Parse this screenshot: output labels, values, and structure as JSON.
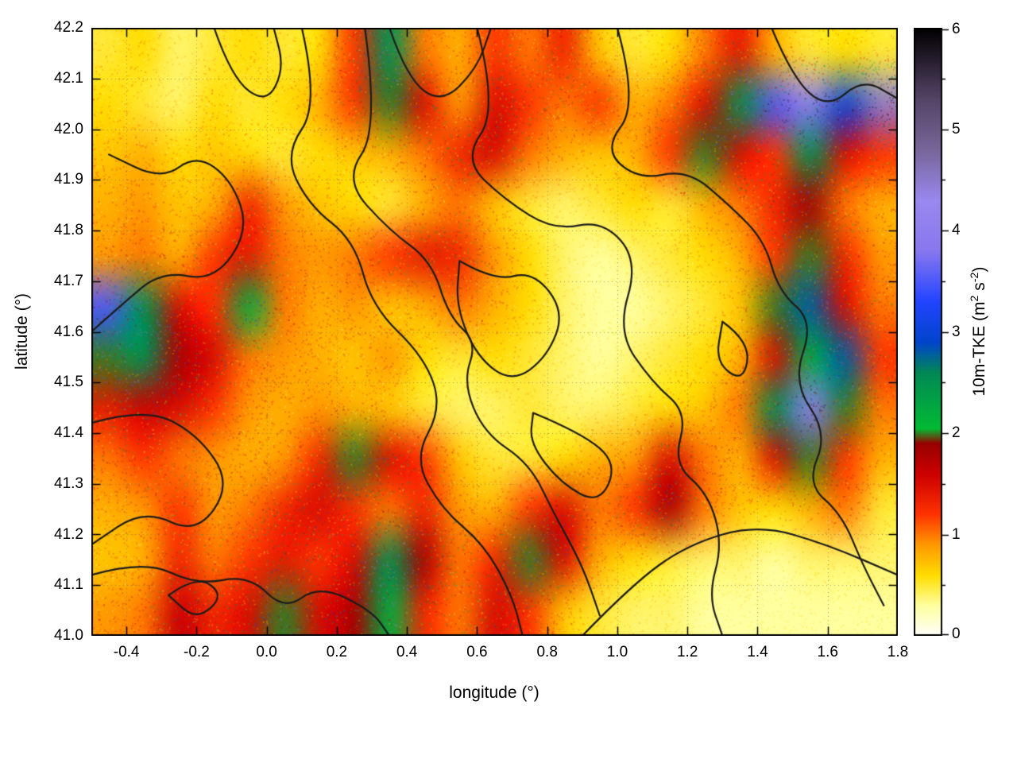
{
  "figure": {
    "background": "#ffffff"
  },
  "chart_data": {
    "type": "heatmap",
    "title": "",
    "xlabel": "longitude (°)",
    "ylabel": "latitude (°)",
    "xlim": [
      -0.5,
      1.8
    ],
    "ylim": [
      41.0,
      42.2
    ],
    "xticks": [
      -0.4,
      -0.2,
      0.0,
      0.2,
      0.4,
      0.6,
      0.8,
      1.0,
      1.2,
      1.4,
      1.6,
      1.8
    ],
    "yticks": [
      41.0,
      41.1,
      41.2,
      41.3,
      41.4,
      41.5,
      41.6,
      41.7,
      41.8,
      41.9,
      42.0,
      42.1,
      42.2
    ],
    "grid": true,
    "legend_position": "none",
    "colorbar": {
      "label": "10m-TKE (m^2 s^-2)",
      "label_parts": {
        "pre": "10m-TKE (m",
        "sup1": "2",
        "mid": " s",
        "sup2": "-2",
        "post": ")"
      },
      "min": 0,
      "max": 6,
      "ticks": [
        0,
        1,
        2,
        3,
        4,
        5,
        6
      ],
      "minor_ticks": [
        0.5,
        1.5,
        2.5,
        3.5,
        4.5,
        5.5
      ]
    },
    "palette": [
      [
        0.0,
        "#ffffff"
      ],
      [
        0.3,
        "#ffffa0"
      ],
      [
        0.6,
        "#ffdd00"
      ],
      [
        0.9,
        "#ff9900"
      ],
      [
        1.2,
        "#ff3300"
      ],
      [
        1.6,
        "#cc0000"
      ],
      [
        1.9,
        "#990000"
      ],
      [
        2.05,
        "#00bb33"
      ],
      [
        2.6,
        "#008855"
      ],
      [
        2.9,
        "#0044cc"
      ],
      [
        3.3,
        "#2244ff"
      ],
      [
        3.8,
        "#8877ee"
      ],
      [
        4.3,
        "#9988ee"
      ],
      [
        4.8,
        "#776699"
      ],
      [
        5.3,
        "#554466"
      ],
      [
        6.0,
        "#000000"
      ]
    ],
    "contour_color": "#1c1c1c",
    "grid_lon": [
      -0.45,
      -0.35,
      -0.25,
      -0.15,
      -0.05,
      0.05,
      0.15,
      0.25,
      0.35,
      0.45,
      0.55,
      0.65,
      0.75,
      0.85,
      0.95,
      1.05,
      1.15,
      1.25,
      1.35,
      1.45,
      1.55,
      1.65,
      1.75
    ],
    "grid_lat": [
      42.15,
      42.05,
      41.95,
      41.85,
      41.75,
      41.65,
      41.55,
      41.45,
      41.35,
      41.25,
      41.15,
      41.05
    ],
    "values": [
      [
        0.5,
        0.6,
        0.4,
        0.5,
        0.6,
        0.5,
        0.6,
        1.2,
        2.5,
        1.0,
        0.8,
        1.2,
        1.0,
        1.3,
        0.7,
        0.5,
        0.6,
        1.0,
        1.4,
        0.8,
        0.5,
        0.6,
        0.5
      ],
      [
        0.6,
        0.5,
        0.4,
        0.6,
        0.5,
        0.6,
        0.8,
        1.2,
        2.0,
        1.5,
        0.9,
        1.5,
        1.2,
        1.0,
        1.2,
        0.8,
        1.0,
        1.5,
        2.5,
        3.5,
        4.0,
        3.0,
        4.5
      ],
      [
        0.7,
        0.8,
        0.6,
        0.7,
        0.6,
        0.5,
        0.6,
        0.7,
        0.8,
        1.0,
        1.3,
        1.5,
        1.0,
        0.8,
        0.7,
        0.8,
        1.2,
        2.0,
        1.5,
        1.2,
        2.5,
        1.5,
        1.2
      ],
      [
        0.8,
        0.9,
        0.7,
        0.8,
        1.3,
        0.9,
        0.7,
        0.6,
        0.5,
        0.8,
        1.0,
        0.7,
        0.5,
        0.4,
        0.5,
        0.6,
        0.5,
        0.8,
        1.0,
        1.3,
        1.8,
        1.0,
        0.8
      ],
      [
        0.9,
        1.0,
        0.8,
        1.2,
        1.4,
        1.0,
        0.9,
        1.0,
        1.2,
        1.4,
        1.3,
        0.9,
        0.6,
        0.4,
        0.3,
        0.4,
        0.5,
        0.6,
        0.8,
        1.2,
        2.0,
        1.3,
        0.9
      ],
      [
        3.5,
        2.5,
        1.5,
        1.2,
        2.2,
        1.0,
        0.8,
        0.9,
        0.7,
        0.8,
        1.0,
        0.8,
        0.6,
        0.4,
        0.3,
        0.3,
        0.4,
        0.5,
        0.7,
        2.0,
        2.8,
        1.5,
        1.0
      ],
      [
        2.0,
        2.5,
        1.8,
        1.5,
        1.0,
        0.9,
        0.8,
        0.7,
        0.9,
        0.6,
        0.5,
        0.6,
        0.5,
        0.4,
        0.3,
        0.4,
        0.5,
        0.6,
        0.8,
        1.5,
        2.2,
        2.8,
        1.2
      ],
      [
        1.4,
        1.6,
        1.5,
        1.2,
        0.9,
        0.8,
        0.9,
        0.8,
        0.7,
        0.5,
        0.4,
        0.4,
        0.5,
        0.4,
        0.4,
        0.5,
        0.6,
        0.7,
        1.0,
        2.5,
        4.0,
        2.0,
        1.0
      ],
      [
        1.0,
        1.2,
        1.0,
        0.9,
        0.8,
        0.9,
        1.3,
        2.0,
        1.5,
        1.2,
        0.7,
        0.5,
        0.5,
        0.6,
        0.8,
        0.9,
        1.5,
        1.0,
        0.8,
        1.5,
        2.0,
        1.2,
        0.8
      ],
      [
        0.8,
        0.9,
        1.2,
        0.9,
        1.0,
        1.3,
        1.5,
        1.2,
        1.0,
        1.3,
        0.9,
        0.8,
        1.2,
        1.5,
        1.0,
        1.2,
        1.8,
        1.0,
        0.7,
        0.6,
        0.8,
        1.0,
        0.5
      ],
      [
        0.7,
        0.8,
        1.3,
        1.0,
        1.2,
        1.4,
        1.2,
        1.5,
        2.5,
        1.8,
        1.0,
        1.3,
        2.0,
        1.5,
        0.8,
        0.6,
        0.5,
        0.4,
        0.4,
        0.3,
        0.4,
        0.4,
        0.4
      ],
      [
        0.9,
        1.0,
        1.6,
        1.3,
        1.5,
        2.0,
        1.5,
        1.8,
        2.2,
        1.3,
        1.0,
        1.5,
        1.2,
        0.7,
        0.5,
        0.4,
        0.4,
        0.3,
        0.3,
        0.3,
        0.3,
        0.3,
        0.3
      ]
    ],
    "contours": [
      [
        [
          -0.5,
          41.6
        ],
        [
          -0.42,
          41.65
        ],
        [
          -0.3,
          41.72
        ],
        [
          -0.15,
          41.7
        ],
        [
          -0.05,
          41.8
        ],
        [
          -0.1,
          41.9
        ],
        [
          -0.2,
          41.95
        ],
        [
          -0.3,
          41.9
        ],
        [
          -0.45,
          41.95
        ]
      ],
      [
        [
          -0.5,
          41.42
        ],
        [
          -0.35,
          41.45
        ],
        [
          -0.2,
          41.4
        ],
        [
          -0.1,
          41.3
        ],
        [
          -0.2,
          41.2
        ],
        [
          -0.35,
          41.25
        ],
        [
          -0.5,
          41.18
        ]
      ],
      [
        [
          0.1,
          42.2
        ],
        [
          0.15,
          42.05
        ],
        [
          0.05,
          41.95
        ],
        [
          0.12,
          41.85
        ],
        [
          0.25,
          41.78
        ],
        [
          0.3,
          41.65
        ],
        [
          0.45,
          41.55
        ],
        [
          0.5,
          41.45
        ],
        [
          0.42,
          41.35
        ],
        [
          0.5,
          41.25
        ],
        [
          0.62,
          41.18
        ],
        [
          0.7,
          41.08
        ],
        [
          0.73,
          41.0
        ]
      ],
      [
        [
          0.28,
          42.2
        ],
        [
          0.32,
          42.0
        ],
        [
          0.22,
          41.9
        ],
        [
          0.35,
          41.8
        ],
        [
          0.47,
          41.74
        ],
        [
          0.52,
          41.63
        ],
        [
          0.6,
          41.58
        ],
        [
          0.56,
          41.5
        ],
        [
          0.62,
          41.4
        ],
        [
          0.75,
          41.34
        ],
        [
          0.82,
          41.24
        ],
        [
          0.9,
          41.14
        ],
        [
          0.95,
          41.04
        ]
      ],
      [
        [
          0.6,
          42.2
        ],
        [
          0.66,
          42.04
        ],
        [
          0.56,
          41.94
        ],
        [
          0.68,
          41.86
        ],
        [
          0.82,
          41.8
        ],
        [
          0.96,
          41.82
        ],
        [
          1.06,
          41.74
        ],
        [
          1.0,
          41.6
        ],
        [
          1.1,
          41.5
        ],
        [
          1.2,
          41.44
        ],
        [
          1.16,
          41.34
        ],
        [
          1.26,
          41.28
        ],
        [
          1.3,
          41.18
        ],
        [
          1.26,
          41.08
        ],
        [
          1.3,
          41.0
        ]
      ],
      [
        [
          1.0,
          42.2
        ],
        [
          1.06,
          42.05
        ],
        [
          0.96,
          41.96
        ],
        [
          1.06,
          41.9
        ],
        [
          1.2,
          41.92
        ],
        [
          1.32,
          41.85
        ],
        [
          1.42,
          41.78
        ],
        [
          1.46,
          41.68
        ],
        [
          1.56,
          41.62
        ],
        [
          1.5,
          41.5
        ],
        [
          1.6,
          41.4
        ],
        [
          1.54,
          41.3
        ],
        [
          1.64,
          41.24
        ],
        [
          1.7,
          41.14
        ],
        [
          1.76,
          41.06
        ]
      ],
      [
        [
          1.44,
          42.2
        ],
        [
          1.5,
          42.1
        ],
        [
          1.6,
          42.04
        ],
        [
          1.7,
          42.1
        ],
        [
          1.8,
          42.06
        ]
      ],
      [
        [
          0.9,
          41.0
        ],
        [
          1.04,
          41.1
        ],
        [
          1.2,
          41.18
        ],
        [
          1.4,
          41.22
        ],
        [
          1.6,
          41.18
        ],
        [
          1.8,
          41.12
        ]
      ],
      [
        [
          0.35,
          42.2
        ],
        [
          0.4,
          42.1
        ],
        [
          0.5,
          42.05
        ],
        [
          0.6,
          42.12
        ],
        [
          0.64,
          42.2
        ]
      ],
      [
        [
          0.55,
          41.74
        ],
        [
          0.65,
          41.7
        ],
        [
          0.76,
          41.72
        ],
        [
          0.85,
          41.64
        ],
        [
          0.8,
          41.55
        ],
        [
          0.7,
          41.5
        ],
        [
          0.6,
          41.55
        ],
        [
          0.54,
          41.65
        ],
        [
          0.55,
          41.74
        ]
      ],
      [
        [
          0.76,
          41.44
        ],
        [
          0.9,
          41.4
        ],
        [
          1.0,
          41.34
        ],
        [
          0.95,
          41.26
        ],
        [
          0.84,
          41.3
        ],
        [
          0.75,
          41.38
        ],
        [
          0.76,
          41.44
        ]
      ],
      [
        [
          -0.28,
          41.08
        ],
        [
          -0.2,
          41.12
        ],
        [
          -0.12,
          41.08
        ],
        [
          -0.2,
          41.03
        ],
        [
          -0.28,
          41.08
        ]
      ],
      [
        [
          -0.15,
          42.2
        ],
        [
          -0.1,
          42.1
        ],
        [
          0.0,
          42.05
        ],
        [
          0.05,
          42.12
        ],
        [
          0.02,
          42.2
        ]
      ],
      [
        [
          1.3,
          41.62
        ],
        [
          1.38,
          41.58
        ],
        [
          1.36,
          41.5
        ],
        [
          1.28,
          41.54
        ],
        [
          1.3,
          41.62
        ]
      ],
      [
        [
          -0.5,
          41.12
        ],
        [
          -0.35,
          41.15
        ],
        [
          -0.2,
          41.1
        ],
        [
          -0.05,
          41.12
        ],
        [
          0.05,
          41.05
        ],
        [
          0.15,
          41.1
        ],
        [
          0.3,
          41.05
        ],
        [
          0.35,
          41.0
        ]
      ]
    ]
  }
}
